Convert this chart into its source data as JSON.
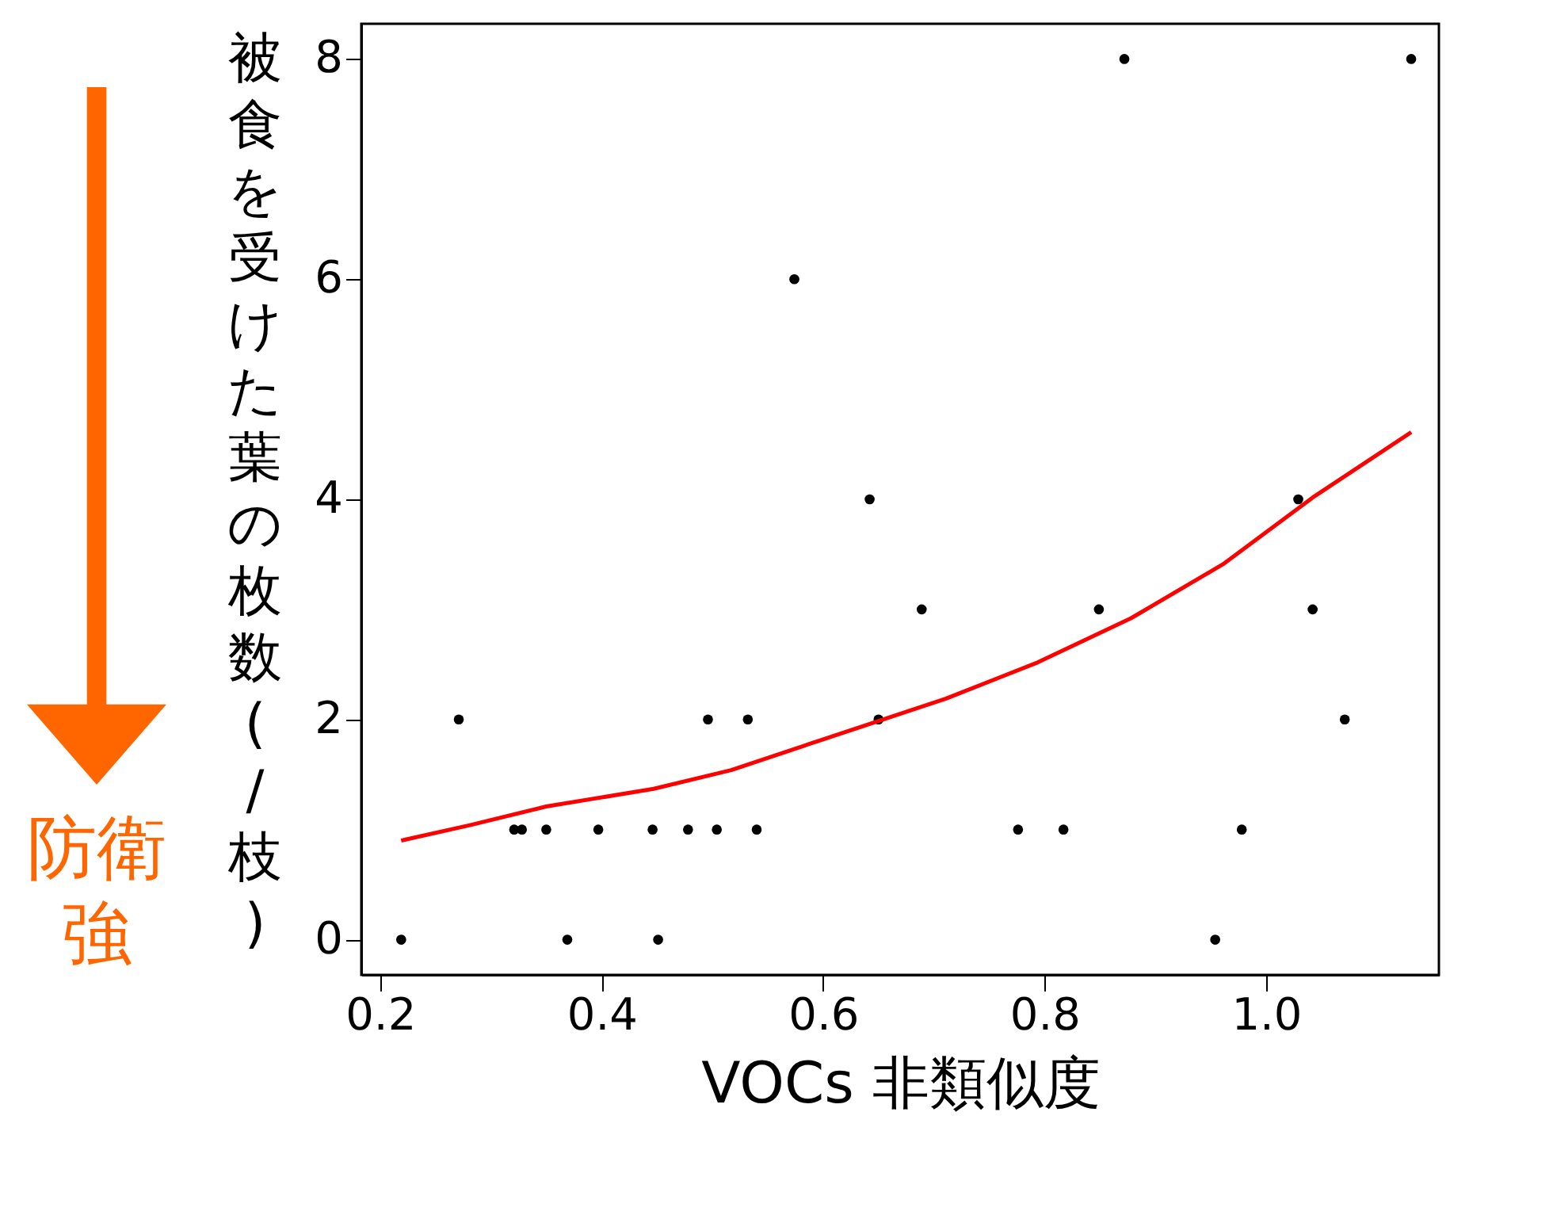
{
  "chart_data": {
    "type": "scatter",
    "xlabel": "VOCs 非類似度",
    "ylabel": "被食を受けた葉の枚数(/枝)",
    "xlim": [
      0.183,
      1.156
    ],
    "ylim": [
      -0.32,
      8.32
    ],
    "xticks": [
      0.2,
      0.4,
      0.6,
      0.8,
      {
        "value": 1.0,
        "label": "1.0"
      }
    ],
    "yticks": [
      0,
      2,
      4,
      6,
      8
    ],
    "marker": "circle",
    "annotations": [
      "防衛強"
    ],
    "series": [
      {
        "color": "#000000",
        "x": [
          0.219,
          0.271,
          0.321,
          0.328,
          0.35,
          0.369,
          0.397,
          0.446,
          0.451,
          0.478,
          0.496,
          0.504,
          0.532,
          0.54,
          0.574,
          0.642,
          0.65,
          0.689,
          0.776,
          0.817,
          0.849,
          0.872,
          0.954,
          0.978,
          1.029,
          1.042,
          1.071,
          1.131
        ],
        "values": [
          0,
          2,
          1,
          1,
          1,
          0,
          1,
          1,
          0,
          1,
          2,
          1,
          2,
          1,
          6,
          4,
          2,
          3,
          1,
          1,
          3,
          8,
          0,
          1,
          4,
          3,
          2,
          8
        ]
      },
      {
        "type": "line",
        "color": "#ff0000",
        "line_style": "solid",
        "marker": "none",
        "x": [
          0.219,
          0.281,
          0.35,
          0.447,
          0.517,
          0.6,
          0.711,
          0.794,
          0.878,
          0.961,
          1.044,
          1.131
        ],
        "values": [
          0.9,
          1.04,
          1.21,
          1.37,
          1.54,
          1.82,
          2.19,
          2.52,
          2.92,
          3.41,
          4.03,
          4.61
        ]
      }
    ]
  }
}
